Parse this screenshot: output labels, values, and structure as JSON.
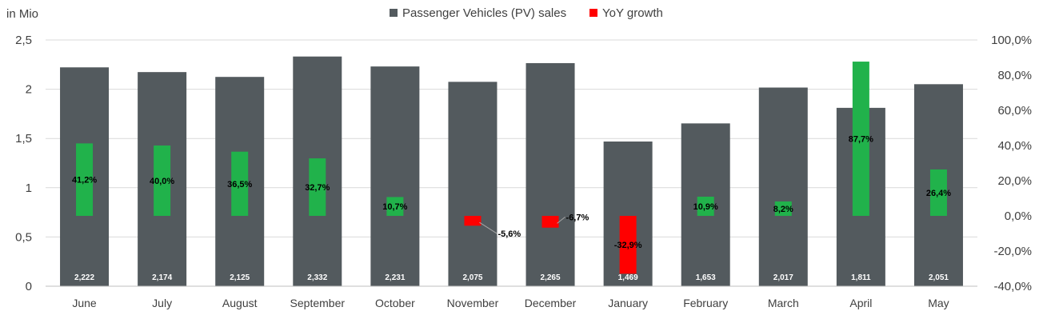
{
  "chart_data": {
    "type": "bar",
    "unit_label": "in Mio",
    "categories": [
      "June",
      "July",
      "August",
      "September",
      "October",
      "November",
      "December",
      "January",
      "February",
      "March",
      "April",
      "May"
    ],
    "series": [
      {
        "name": "Passenger Vehicles (PV) sales",
        "axis": "left",
        "color": "#535a5e",
        "values": [
          2.222,
          2.174,
          2.125,
          2.332,
          2.231,
          2.075,
          2.265,
          1.469,
          1.653,
          2.017,
          1.811,
          2.051
        ],
        "labels": [
          "2,222",
          "2,174",
          "2,125",
          "2,332",
          "2,231",
          "2,075",
          "2,265",
          "1,469",
          "1,653",
          "2,017",
          "1,811",
          "2,051"
        ]
      },
      {
        "name": "YoY growth",
        "axis": "right",
        "legend_color": "#ff0000",
        "positive_color": "#21b24b",
        "negative_color": "#ff0000",
        "values": [
          41.2,
          40.0,
          36.5,
          32.7,
          10.7,
          -5.6,
          -6.7,
          -32.9,
          10.9,
          8.2,
          87.7,
          26.4
        ],
        "labels": [
          "41,2%",
          "40,0%",
          "36,5%",
          "32,7%",
          "10,7%",
          "-5,6%",
          "-6,7%",
          "-32,9%",
          "10,9%",
          "8,2%",
          "87,7%",
          "26,4%"
        ]
      }
    ],
    "y_left": {
      "lim": [
        0,
        2.5
      ],
      "ticks": [
        0,
        0.5,
        1,
        1.5,
        2,
        2.5
      ],
      "tick_labels": [
        "0",
        "0,5",
        "1",
        "1,5",
        "2",
        "2,5"
      ]
    },
    "y_right": {
      "lim": [
        -40,
        100
      ],
      "ticks": [
        -40,
        -20,
        0,
        20,
        40,
        60,
        80,
        100
      ],
      "tick_labels": [
        "-40,0%",
        "-20,0%",
        "0,0%",
        "20,0%",
        "40,0%",
        "60,0%",
        "80,0%",
        "100,0%"
      ]
    },
    "grid": true,
    "legend_position": "top-center"
  }
}
